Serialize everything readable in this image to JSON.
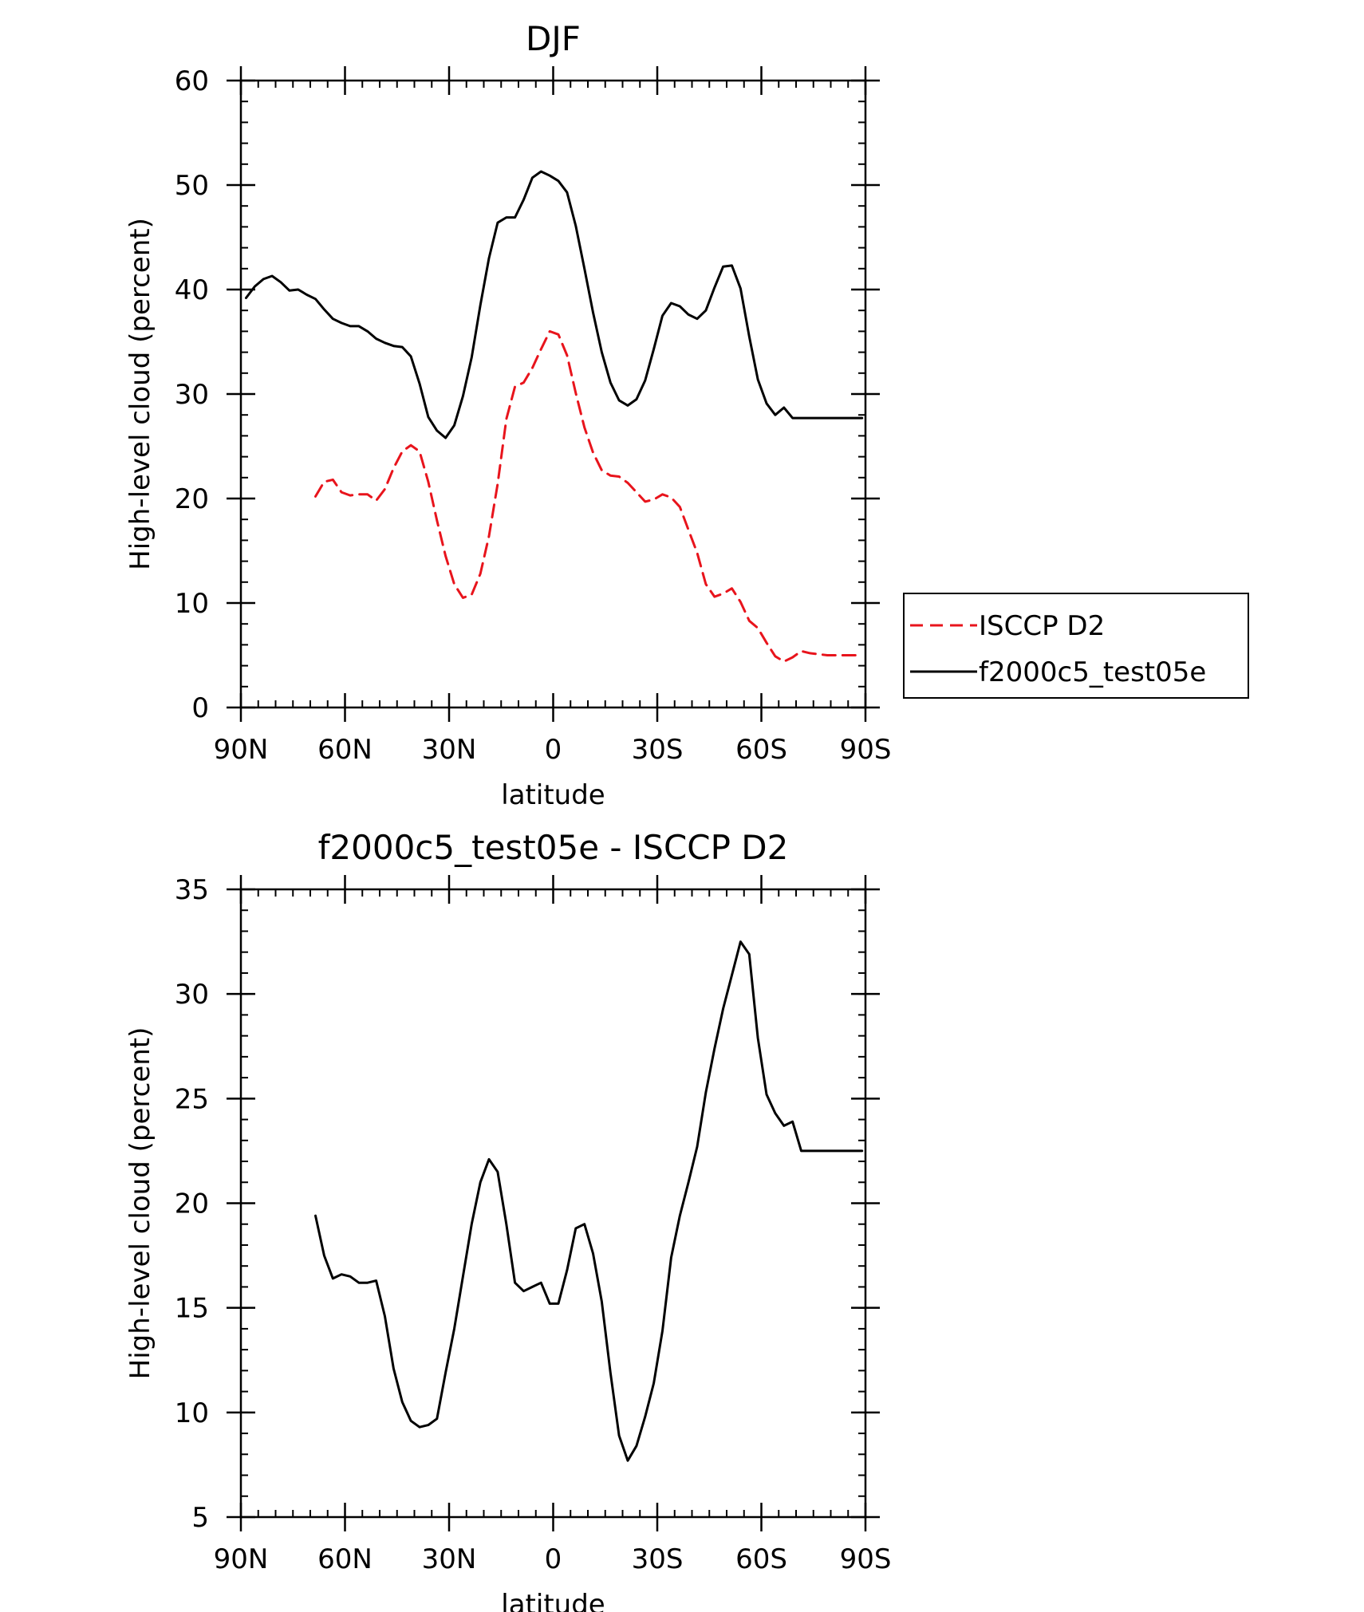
{
  "chart_data": [
    {
      "type": "line",
      "title": "DJF",
      "xlabel": "latitude",
      "ylabel": "High-level cloud (percent)",
      "xlim": [
        -90,
        90
      ],
      "ylim": [
        0,
        60
      ],
      "x_ticks": [
        {
          "value": -90,
          "label": "90N"
        },
        {
          "value": -60,
          "label": "60N"
        },
        {
          "value": -30,
          "label": "30N"
        },
        {
          "value": 0,
          "label": "0"
        },
        {
          "value": 30,
          "label": "30S"
        },
        {
          "value": 60,
          "label": "60S"
        },
        {
          "value": 90,
          "label": "90S"
        }
      ],
      "y_ticks": [
        {
          "value": 0,
          "label": "0"
        },
        {
          "value": 10,
          "label": "10"
        },
        {
          "value": 20,
          "label": "20"
        },
        {
          "value": 30,
          "label": "30"
        },
        {
          "value": 40,
          "label": "40"
        },
        {
          "value": 50,
          "label": "50"
        },
        {
          "value": 60,
          "label": "60"
        }
      ],
      "legend": {
        "position": "right",
        "entries": [
          "ISCCP D2",
          "f2000c5_test05e"
        ]
      },
      "series": [
        {
          "name": "ISCCP D2",
          "color": "#e8141c",
          "dash": "dashed",
          "x": [
            -68.5,
            -66,
            -63.5,
            -61,
            -58.5,
            -56,
            -53.5,
            -51,
            -48.5,
            -46,
            -43.5,
            -41,
            -38.5,
            -36,
            -33.5,
            -31,
            -28.5,
            -26,
            -23.5,
            -21,
            -18.5,
            -16,
            -13.5,
            -11,
            -8.5,
            -6,
            -3.5,
            -1,
            1.5,
            4,
            6.5,
            9,
            11.5,
            14,
            16.5,
            19,
            21.5,
            24,
            26.5,
            29,
            31.5,
            34,
            36.5,
            39,
            41.5,
            44,
            46.5,
            49,
            51.5,
            54,
            56.5,
            59,
            61.5,
            64,
            66.5,
            69,
            71.5,
            74,
            76.5,
            79,
            81.5,
            84,
            86.5,
            89
          ],
          "y": [
            20.2,
            21.6,
            21.8,
            20.6,
            20.3,
            20.4,
            20.4,
            19.8,
            20.9,
            22.9,
            24.5,
            25.1,
            24.5,
            21.6,
            17.9,
            14.5,
            11.8,
            10.5,
            10.8,
            12.8,
            16.4,
            21.4,
            27.6,
            30.7,
            31.1,
            32.5,
            34.3,
            36.0,
            35.7,
            33.7,
            30.1,
            26.8,
            24.4,
            22.7,
            22.2,
            22.1,
            21.5,
            20.6,
            19.7,
            19.9,
            20.4,
            20.1,
            19.2,
            17.0,
            14.8,
            11.8,
            10.6,
            10.9,
            11.4,
            10.1,
            8.3,
            7.6,
            6.2,
            4.9,
            4.4,
            4.8,
            5.4,
            5.2,
            5.1,
            5.0,
            5.0,
            5.0,
            5.0,
            5.0
          ]
        },
        {
          "name": "f2000c5_test05e",
          "color": "#000000",
          "dash": "solid",
          "x": [
            -88.5,
            -86,
            -83.5,
            -81,
            -78.5,
            -76,
            -73.5,
            -71,
            -68.5,
            -66,
            -63.5,
            -61,
            -58.5,
            -56,
            -53.5,
            -51,
            -48.5,
            -46,
            -43.5,
            -41,
            -38.5,
            -36,
            -33.5,
            -31,
            -28.5,
            -26,
            -23.5,
            -21,
            -18.5,
            -16,
            -13.5,
            -11,
            -8.5,
            -6,
            -3.5,
            -1,
            1.5,
            4,
            6.5,
            9,
            11.5,
            14,
            16.5,
            19,
            21.5,
            24,
            26.5,
            29,
            31.5,
            34,
            36.5,
            39,
            41.5,
            44,
            46.5,
            49,
            51.5,
            54,
            56.5,
            59,
            61.5,
            64,
            66.5,
            69,
            71.5,
            74,
            76.5,
            79,
            81.5,
            84,
            86.5,
            89
          ],
          "y": [
            39.2,
            40.3,
            41.0,
            41.3,
            40.7,
            39.9,
            40.0,
            39.5,
            39.1,
            38.1,
            37.2,
            36.8,
            36.5,
            36.5,
            36.0,
            35.3,
            34.9,
            34.6,
            34.5,
            33.6,
            31.0,
            27.8,
            26.5,
            25.8,
            27.0,
            29.8,
            33.5,
            38.5,
            43.0,
            46.4,
            46.9,
            46.9,
            48.6,
            50.7,
            51.3,
            50.9,
            50.4,
            49.3,
            46.1,
            42.0,
            37.8,
            34.0,
            31.1,
            29.4,
            28.9,
            29.5,
            31.3,
            34.3,
            37.5,
            38.7,
            38.4,
            37.6,
            37.2,
            38.0,
            40.2,
            42.2,
            42.3,
            40.1,
            35.5,
            31.4,
            29.1,
            28.0,
            28.7,
            27.7,
            27.7,
            27.7,
            27.7,
            27.7,
            27.7,
            27.7,
            27.7,
            27.7
          ]
        }
      ]
    },
    {
      "type": "line",
      "title": "f2000c5_test05e - ISCCP D2",
      "xlabel": "latitude",
      "ylabel": "High-level cloud (percent)",
      "xlim": [
        -90,
        90
      ],
      "ylim": [
        5,
        35
      ],
      "x_ticks": [
        {
          "value": -90,
          "label": "90N"
        },
        {
          "value": -60,
          "label": "60N"
        },
        {
          "value": -30,
          "label": "30N"
        },
        {
          "value": 0,
          "label": "0"
        },
        {
          "value": 30,
          "label": "30S"
        },
        {
          "value": 60,
          "label": "60S"
        },
        {
          "value": 90,
          "label": "90S"
        }
      ],
      "y_ticks": [
        {
          "value": 5,
          "label": "5"
        },
        {
          "value": 10,
          "label": "10"
        },
        {
          "value": 15,
          "label": "15"
        },
        {
          "value": 20,
          "label": "20"
        },
        {
          "value": 25,
          "label": "25"
        },
        {
          "value": 30,
          "label": "30"
        },
        {
          "value": 35,
          "label": "35"
        }
      ],
      "series": [
        {
          "name": "f2000c5_test05e - ISCCP D2",
          "color": "#000000",
          "dash": "solid",
          "x": [
            -68.5,
            -66,
            -63.5,
            -61,
            -58.5,
            -56,
            -53.5,
            -51,
            -48.5,
            -46,
            -43.5,
            -41,
            -38.5,
            -36,
            -33.5,
            -31,
            -28.5,
            -26,
            -23.5,
            -21,
            -18.5,
            -16,
            -13.5,
            -11,
            -8.5,
            -6,
            -3.5,
            -1,
            1.5,
            4,
            6.5,
            9,
            11.5,
            14,
            16.5,
            19,
            21.5,
            24,
            26.5,
            29,
            31.5,
            34,
            36.5,
            39,
            41.5,
            44,
            46.5,
            49,
            51.5,
            54,
            56.5,
            59,
            61.5,
            64,
            66.5,
            69,
            71.5,
            74,
            76.5,
            79,
            81.5,
            84,
            86.5,
            89
          ],
          "y": [
            19.4,
            17.5,
            16.4,
            16.6,
            16.5,
            16.2,
            16.2,
            16.3,
            14.6,
            12.1,
            10.5,
            9.6,
            9.3,
            9.4,
            9.7,
            11.9,
            14.0,
            16.5,
            19.0,
            21.0,
            22.1,
            21.5,
            19.0,
            16.2,
            15.8,
            16.0,
            16.2,
            15.2,
            15.2,
            16.8,
            18.8,
            19.0,
            17.6,
            15.3,
            11.9,
            8.9,
            7.7,
            8.4,
            9.8,
            11.4,
            13.9,
            17.4,
            19.4,
            21.0,
            22.7,
            25.3,
            27.4,
            29.3,
            30.9,
            32.5,
            31.9,
            27.9,
            25.2,
            24.3,
            23.7,
            23.9,
            22.5,
            22.5,
            22.5,
            22.5,
            22.5,
            22.5,
            22.5,
            22.5
          ]
        }
      ]
    }
  ]
}
